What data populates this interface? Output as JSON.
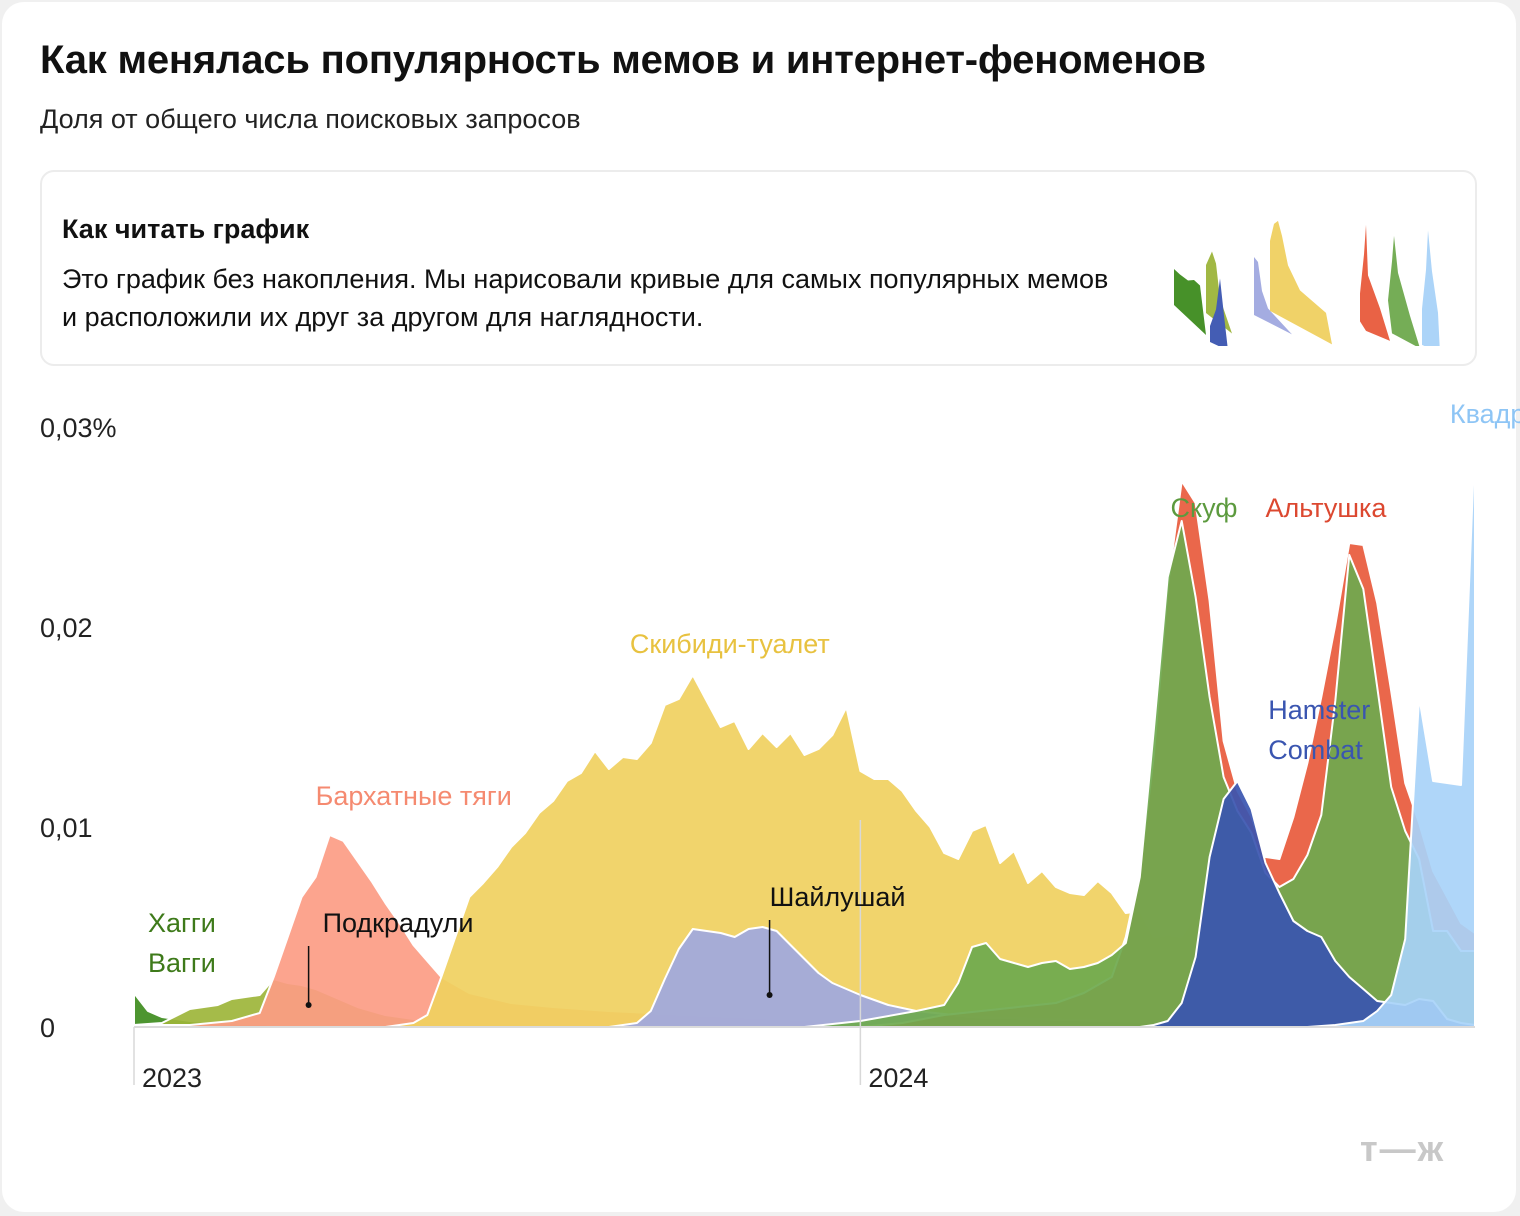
{
  "title": "Как менялась популярность мемов и интернет-феноменов",
  "subtitle": "Доля от общего числа поисковых запросов",
  "note": {
    "heading": "Как читать график",
    "text": "Это график без накопления. Мы нарисовали кривые для самых популярных мемов и расположили их друг за другом для наглядности."
  },
  "brand": "т—ж",
  "chart_data": {
    "type": "area",
    "stacked": false,
    "title": "Как менялась популярность мемов и интернет-феноменов",
    "ylabel": "Доля от общего числа поисковых запросов",
    "ylim": [
      0,
      0.03
    ],
    "x_unit": "weeks since 2023-01-01",
    "xlim": [
      0,
      96
    ],
    "x_ticks": [
      {
        "x": 0,
        "label": "2023"
      },
      {
        "x": 52,
        "label": "2024"
      }
    ],
    "y_ticks": [
      {
        "value": 0,
        "label": "0"
      },
      {
        "value": 0.01,
        "label": "0,01"
      },
      {
        "value": 0.02,
        "label": "0,02"
      },
      {
        "value": 0.03,
        "label": "0,03%"
      }
    ],
    "series": [
      {
        "name": "Хагги Вагги",
        "label_lines": [
          "Хагги",
          "Вагги"
        ],
        "color": "#3e8c1e",
        "label_color": "#3e7a1a",
        "label_x": 1,
        "label_y": 0.00475,
        "points": [
          [
            0,
            0.0017
          ],
          [
            1,
            0.0008
          ],
          [
            2,
            0.0005
          ],
          [
            4,
            0.0003
          ],
          [
            6,
            0.0002
          ],
          [
            10,
            0.0001
          ],
          [
            20,
            0.0001
          ],
          [
            40,
            0
          ],
          [
            96,
            0
          ]
        ]
      },
      {
        "name": "Подкрадули",
        "color": "#9db53a",
        "label_color": "#111111",
        "label_x": 13.5,
        "label_y": 0.00475,
        "pointer_x": 12.5,
        "pointer_y": 0.0011,
        "points": [
          [
            0,
            0.0001
          ],
          [
            2,
            0.0002
          ],
          [
            4,
            0.0009
          ],
          [
            6,
            0.0011
          ],
          [
            7,
            0.0014
          ],
          [
            9,
            0.0016
          ],
          [
            10,
            0.0024
          ],
          [
            11,
            0.0022
          ],
          [
            12,
            0.0021
          ],
          [
            13,
            0.0019
          ],
          [
            14,
            0.0016
          ],
          [
            16,
            0.001
          ],
          [
            18,
            0.0006
          ],
          [
            21,
            0.0003
          ],
          [
            26,
            0.0002
          ],
          [
            40,
            0.0001
          ],
          [
            96,
            0
          ]
        ]
      },
      {
        "name": "Бархатные тяги",
        "color": "#fc9c84",
        "label_color": "#f58a70",
        "label_x": 13,
        "label_y": 0.0111,
        "points": [
          [
            0,
            0.0001
          ],
          [
            4,
            0.0001
          ],
          [
            7,
            0.0003
          ],
          [
            9,
            0.0007
          ],
          [
            10,
            0.0025
          ],
          [
            11,
            0.0045
          ],
          [
            12,
            0.0065
          ],
          [
            13,
            0.0075
          ],
          [
            14,
            0.0096
          ],
          [
            15,
            0.0093
          ],
          [
            16,
            0.0083
          ],
          [
            17,
            0.0073
          ],
          [
            18,
            0.0062
          ],
          [
            19,
            0.0052
          ],
          [
            20,
            0.0041
          ],
          [
            21,
            0.0033
          ],
          [
            22,
            0.0025
          ],
          [
            24,
            0.0017
          ],
          [
            27,
            0.0012
          ],
          [
            30,
            0.001
          ],
          [
            34,
            0.0008
          ],
          [
            40,
            0.0006
          ],
          [
            50,
            0.0003
          ],
          [
            60,
            0.0002
          ],
          [
            96,
            0.0001
          ]
        ]
      },
      {
        "name": "Скибиди-туалет",
        "color": "#f0d060",
        "label_color": "#e8c240",
        "label_x": 35.5,
        "label_y": 0.0187,
        "points": [
          [
            0,
            0
          ],
          [
            18,
            0
          ],
          [
            20,
            0.0002
          ],
          [
            21,
            0.0006
          ],
          [
            22,
            0.0025
          ],
          [
            23,
            0.0045
          ],
          [
            24,
            0.0065
          ],
          [
            25,
            0.0072
          ],
          [
            26,
            0.008
          ],
          [
            27,
            0.009
          ],
          [
            28,
            0.0097
          ],
          [
            29,
            0.0107
          ],
          [
            30,
            0.0113
          ],
          [
            31,
            0.0123
          ],
          [
            32,
            0.0127
          ],
          [
            33,
            0.0138
          ],
          [
            34,
            0.0129
          ],
          [
            35,
            0.0135
          ],
          [
            36,
            0.0134
          ],
          [
            37,
            0.0142
          ],
          [
            38,
            0.0161
          ],
          [
            39,
            0.0164
          ],
          [
            40,
            0.0176
          ],
          [
            41,
            0.0163
          ],
          [
            42,
            0.015
          ],
          [
            43,
            0.0153
          ],
          [
            44,
            0.0139
          ],
          [
            45,
            0.0147
          ],
          [
            46,
            0.014
          ],
          [
            47,
            0.0147
          ],
          [
            48,
            0.0136
          ],
          [
            49,
            0.0139
          ],
          [
            50,
            0.0146
          ],
          [
            51,
            0.016
          ],
          [
            52,
            0.0128
          ],
          [
            53,
            0.0124
          ],
          [
            54,
            0.0124
          ],
          [
            55,
            0.0118
          ],
          [
            56,
            0.0108
          ],
          [
            57,
            0.01
          ],
          [
            58,
            0.0087
          ],
          [
            59,
            0.0084
          ],
          [
            60,
            0.0098
          ],
          [
            61,
            0.0101
          ],
          [
            62,
            0.0082
          ],
          [
            63,
            0.0088
          ],
          [
            64,
            0.0072
          ],
          [
            65,
            0.0078
          ],
          [
            66,
            0.007
          ],
          [
            67,
            0.0067
          ],
          [
            68,
            0.0066
          ],
          [
            69,
            0.0073
          ],
          [
            70,
            0.0067
          ],
          [
            71,
            0.0057
          ],
          [
            72,
            0.0058
          ],
          [
            73,
            0.0045
          ],
          [
            74,
            0.0046
          ],
          [
            75,
            0.0045
          ],
          [
            76,
            0.0056
          ],
          [
            77,
            0.0044
          ],
          [
            78,
            0.0046
          ],
          [
            80,
            0.0043
          ],
          [
            84,
            0.0033
          ],
          [
            88,
            0.0024
          ],
          [
            92,
            0.0017
          ],
          [
            96,
            0.0011
          ]
        ]
      },
      {
        "name": "Шайлушай",
        "color": "#a0a8e0",
        "label_color": "#111111",
        "label_x": 45.5,
        "label_y": 0.00605,
        "pointer_x": 45.5,
        "pointer_y": 0.0016,
        "points": [
          [
            0,
            0
          ],
          [
            34,
            0
          ],
          [
            36,
            0.0002
          ],
          [
            37,
            0.0008
          ],
          [
            38,
            0.0024
          ],
          [
            39,
            0.0039
          ],
          [
            40,
            0.0049
          ],
          [
            41,
            0.0048
          ],
          [
            42,
            0.0047
          ],
          [
            43,
            0.0045
          ],
          [
            44,
            0.0049
          ],
          [
            45,
            0.005
          ],
          [
            46,
            0.0048
          ],
          [
            47,
            0.0041
          ],
          [
            48,
            0.0034
          ],
          [
            49,
            0.0027
          ],
          [
            50,
            0.0022
          ],
          [
            52,
            0.0016
          ],
          [
            54,
            0.0011
          ],
          [
            56,
            0.0008
          ],
          [
            60,
            0.0005
          ],
          [
            70,
            0.0003
          ],
          [
            96,
            0.0001
          ]
        ]
      },
      {
        "name": "Альтушка",
        "color": "#e85a3c",
        "label_color": "#dc4830",
        "label_x": 81,
        "label_y": 0.0255,
        "points": [
          [
            0,
            0
          ],
          [
            52,
            0
          ],
          [
            55,
            0.0002
          ],
          [
            58,
            0.0006
          ],
          [
            62,
            0.0009
          ],
          [
            66,
            0.0012
          ],
          [
            68,
            0.0017
          ],
          [
            70,
            0.0025
          ],
          [
            71,
            0.0045
          ],
          [
            72,
            0.0078
          ],
          [
            73,
            0.0135
          ],
          [
            74,
            0.022
          ],
          [
            75,
            0.0273
          ],
          [
            76,
            0.0262
          ],
          [
            77,
            0.0213
          ],
          [
            78,
            0.0143
          ],
          [
            79,
            0.0118
          ],
          [
            80,
            0.0105
          ],
          [
            81,
            0.0085
          ],
          [
            82,
            0.0084
          ],
          [
            83,
            0.0105
          ],
          [
            84,
            0.0132
          ],
          [
            85,
            0.0165
          ],
          [
            86,
            0.0201
          ],
          [
            87,
            0.0242
          ],
          [
            88,
            0.0241
          ],
          [
            89,
            0.0212
          ],
          [
            90,
            0.0168
          ],
          [
            91,
            0.0122
          ],
          [
            92,
            0.0102
          ],
          [
            93,
            0.0078
          ],
          [
            94,
            0.0065
          ],
          [
            95,
            0.0052
          ],
          [
            96,
            0.0047
          ]
        ]
      },
      {
        "name": "Скуф",
        "color": "#6ea94e",
        "label_color": "#5c9a3e",
        "label_x": 74.2,
        "label_y": 0.0255,
        "points": [
          [
            0,
            0
          ],
          [
            48,
            0
          ],
          [
            52,
            0.0003
          ],
          [
            56,
            0.0008
          ],
          [
            58,
            0.0011
          ],
          [
            59,
            0.0022
          ],
          [
            60,
            0.004
          ],
          [
            61,
            0.0042
          ],
          [
            62,
            0.0034
          ],
          [
            63,
            0.0032
          ],
          [
            64,
            0.003
          ],
          [
            65,
            0.0032
          ],
          [
            66,
            0.0033
          ],
          [
            67,
            0.0029
          ],
          [
            68,
            0.003
          ],
          [
            69,
            0.0032
          ],
          [
            70,
            0.0036
          ],
          [
            71,
            0.0042
          ],
          [
            72,
            0.0075
          ],
          [
            73,
            0.0148
          ],
          [
            74,
            0.0225
          ],
          [
            75,
            0.0253
          ],
          [
            76,
            0.0215
          ],
          [
            77,
            0.0165
          ],
          [
            78,
            0.0125
          ],
          [
            79,
            0.0108
          ],
          [
            80,
            0.0097
          ],
          [
            81,
            0.0077
          ],
          [
            82,
            0.007
          ],
          [
            83,
            0.0074
          ],
          [
            84,
            0.0086
          ],
          [
            85,
            0.0106
          ],
          [
            86,
            0.0163
          ],
          [
            87,
            0.0236
          ],
          [
            88,
            0.0219
          ],
          [
            89,
            0.017
          ],
          [
            90,
            0.012
          ],
          [
            91,
            0.0098
          ],
          [
            92,
            0.0084
          ],
          [
            93,
            0.0048
          ],
          [
            94,
            0.0048
          ],
          [
            95,
            0.0038
          ],
          [
            96,
            0.0038
          ]
        ]
      },
      {
        "name": "Hamster Combat",
        "label_lines": [
          "Hamster",
          "Combat"
        ],
        "color": "#3a55b0",
        "label_color": "#3a55b0",
        "label_x": 81.2,
        "label_y": 0.0154,
        "points": [
          [
            0,
            0
          ],
          [
            72,
            0
          ],
          [
            73,
            0.0001
          ],
          [
            74,
            0.0003
          ],
          [
            75,
            0.0012
          ],
          [
            76,
            0.0035
          ],
          [
            77,
            0.0085
          ],
          [
            78,
            0.0114
          ],
          [
            79,
            0.0123
          ],
          [
            80,
            0.0109
          ],
          [
            81,
            0.0082
          ],
          [
            82,
            0.0067
          ],
          [
            83,
            0.0053
          ],
          [
            84,
            0.0048
          ],
          [
            85,
            0.0045
          ],
          [
            86,
            0.0033
          ],
          [
            87,
            0.0025
          ],
          [
            88,
            0.0019
          ],
          [
            89,
            0.0013
          ],
          [
            90,
            0.0012
          ],
          [
            91,
            0.0011
          ],
          [
            92,
            0.0014
          ],
          [
            93,
            0.0013
          ],
          [
            94,
            0.0004
          ],
          [
            95,
            0.0002
          ],
          [
            96,
            0.0001
          ]
        ]
      },
      {
        "name": "Квадроберы",
        "color": "#a8d2f8",
        "label_color": "#8ec5f5",
        "label_x": 94.2,
        "label_y": 0.0302,
        "points": [
          [
            0,
            0
          ],
          [
            84,
            0
          ],
          [
            86,
            0.0001
          ],
          [
            88,
            0.0003
          ],
          [
            89,
            0.0008
          ],
          [
            90,
            0.0016
          ],
          [
            91,
            0.0044
          ],
          [
            92,
            0.0165
          ],
          [
            93,
            0.0123
          ],
          [
            94,
            0.0122
          ],
          [
            95,
            0.0121
          ],
          [
            96,
            0.0296
          ],
          [
            97,
            0.0298
          ],
          [
            98,
            0.0157
          ],
          [
            99,
            0.0115
          ],
          [
            100,
            0.0079
          ]
        ]
      }
    ],
    "cutoff_x": 96
  }
}
